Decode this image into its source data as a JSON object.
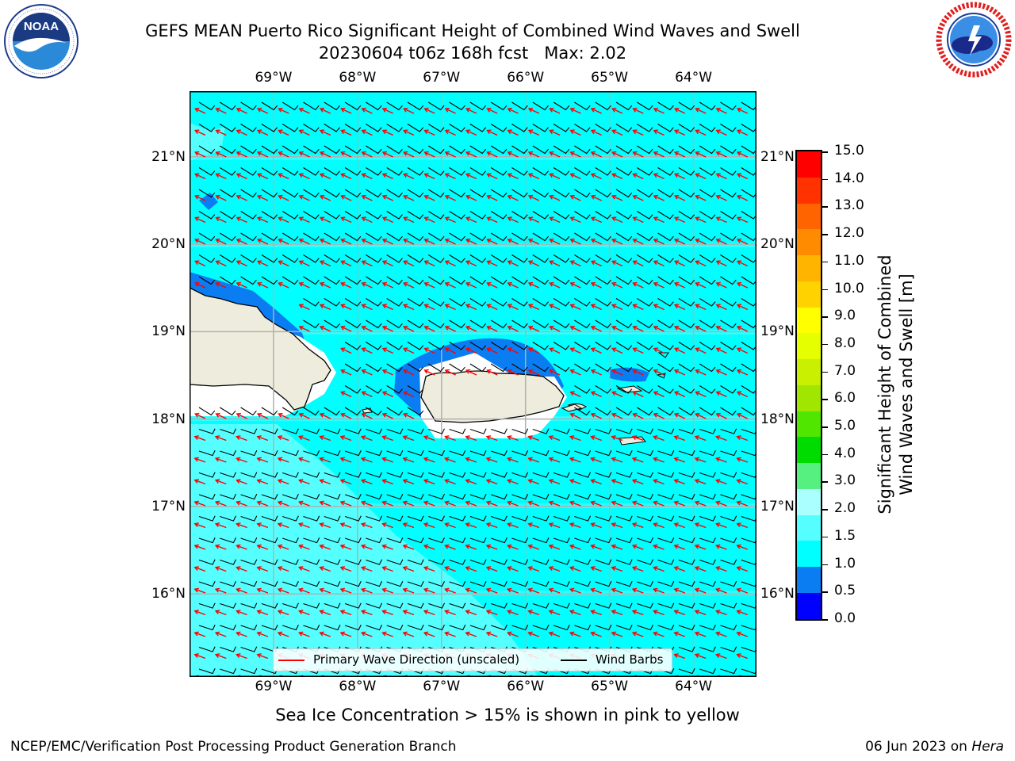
{
  "title": {
    "line1": "GEFS MEAN Puerto Rico Significant Height of Combined Wind Waves and Swell",
    "line2": "20230604 t06z 168h fcst   Max: 2.02"
  },
  "logos": {
    "noaa": {
      "text": "NOAA",
      "ring": "NATIONAL OCEANIC AND ATMOSPHERIC ADMINISTRATION · U.S. DEPARTMENT OF COMMERCE"
    },
    "nws": {
      "ring": "NATIONAL WEATHER SERVICE"
    }
  },
  "map": {
    "lon_ticks": [
      "69°W",
      "68°W",
      "67°W",
      "66°W",
      "65°W",
      "64°W"
    ],
    "lat_ticks": [
      "21°N",
      "20°N",
      "19°N",
      "18°N",
      "17°N",
      "16°N"
    ],
    "lon_values": [
      -69,
      -68,
      -67,
      -66,
      -65,
      -64
    ],
    "lat_values": [
      21,
      20,
      19,
      18,
      17,
      16
    ],
    "lon_range": [
      -70,
      -63.25
    ],
    "lat_range": [
      15.05,
      21.75
    ],
    "grid": true,
    "colors": {
      "ocean_main": "#00ffff",
      "ocean_light": "#55ffff",
      "ocean_lighter": "#a8ffff",
      "shallow_blue": "#0a7df2",
      "land": "#eeecdc",
      "wave_arrow": "#ff0000",
      "wind_barb": "#000000",
      "grid": "#b0b0b0"
    }
  },
  "legend": {
    "wave_label": "Primary Wave Direction (unscaled)",
    "wind_label": "Wind Barbs"
  },
  "colorbar": {
    "title_line1": "Significant Height of Combined",
    "title_line2": "Wind Waves and Swell [m]",
    "levels": [
      "0.0",
      "0.5",
      "1.0",
      "1.5",
      "2.0",
      "3.0",
      "4.0",
      "5.0",
      "6.0",
      "7.0",
      "8.0",
      "9.0",
      "10.0",
      "11.0",
      "12.0",
      "13.0",
      "14.0",
      "15.0"
    ],
    "colors": [
      "#0000ff",
      "#0a7df2",
      "#00ffff",
      "#55ffff",
      "#aaffff",
      "#55f080",
      "#00dc00",
      "#50e600",
      "#a0e600",
      "#c8f000",
      "#e6ff00",
      "#ffff00",
      "#ffd200",
      "#ffb400",
      "#ff8c00",
      "#ff6400",
      "#ff3200",
      "#ff0000"
    ]
  },
  "footer": {
    "note": "Sea Ice Concentration > 15% is shown in pink to yellow",
    "left": "NCEP/EMC/Verification Post Processing Product Generation Branch",
    "date": "06 Jun 2023 on ",
    "machine": "Hera"
  }
}
